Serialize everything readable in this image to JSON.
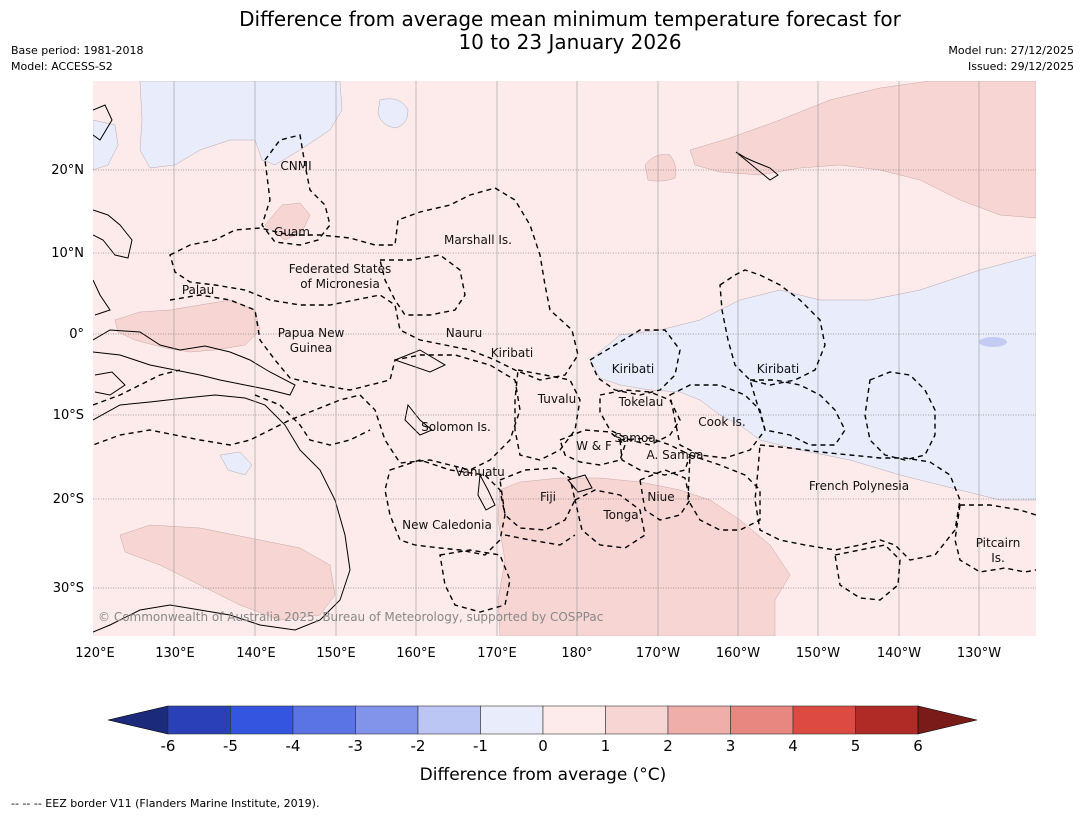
{
  "title_line1": "Difference from average mean minimum temperature forecast for",
  "title_line2": "10 to 23 January 2026",
  "meta_left": {
    "base_period": "Base period: 1981-2018",
    "model": "Model: ACCESS-S2"
  },
  "meta_right": {
    "model_run": "Model run: 27/12/2025",
    "issued": "Issued: 29/12/2025"
  },
  "lat_labels": [
    "20°N",
    "10°N",
    "0°",
    "10°S",
    "20°S",
    "30°S"
  ],
  "lon_labels": [
    "120°E",
    "130°E",
    "140°E",
    "150°E",
    "160°E",
    "170°E",
    "180°",
    "170°W",
    "160°W",
    "150°W",
    "140°W",
    "130°W"
  ],
  "regions": {
    "cnmi": "CNMI",
    "guam": "Guam",
    "marshall": "Marshall Is.",
    "fsm_1": "Federated States",
    "fsm_2": "of Micronesia",
    "palau": "Palau",
    "png_1": "Papua New",
    "png_2": "Guinea",
    "nauru": "Nauru",
    "kiribati_w": "Kiribati",
    "kiribati_c": "Kiribati",
    "kiribati_e": "Kiribati",
    "tuvalu": "Tuvalu",
    "tokelau": "Tokelau",
    "cook": "Cook Is.",
    "solomon": "Solomon Is.",
    "samoa": "Samoa",
    "wf": "W & F",
    "asamoa": "A. Samoa",
    "vanuatu": "Vanuatu",
    "fiji": "Fiji",
    "niue": "Niue",
    "tonga": "Tonga",
    "french_polynesia": "French Polynesia",
    "new_caledonia": "New Caledonia",
    "pitcairn_1": "Pitcairn",
    "pitcairn_2": "Is."
  },
  "copyright": "© Commonwealth of Australia 2025, Bureau of Meteorology, supported by COSPPac",
  "colorbar": {
    "ticks": [
      "-6",
      "-5",
      "-4",
      "-3",
      "-2",
      "-1",
      "0",
      "1",
      "2",
      "3",
      "4",
      "5",
      "6"
    ],
    "colors": [
      "#1c2a7c",
      "#2a40b8",
      "#3355df",
      "#5a74e6",
      "#8293ea",
      "#bcc6f4",
      "#e8ecfb",
      "#fcebea",
      "#f7d5d3",
      "#efaeaa",
      "#e88680",
      "#dc4a42",
      "#b02a26",
      "#7a1b1a"
    ],
    "title": "Difference from average (°C)"
  },
  "footer": "--  --  -- EEZ border V11 (Flanders Marine Institute, 2019)."
}
